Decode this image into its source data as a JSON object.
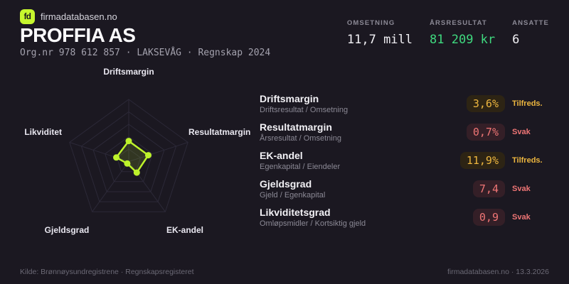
{
  "header": {
    "logo_text": "fd",
    "site": "firmadatabasen.no",
    "company": "PROFFIA AS",
    "meta": "Org.nr 978 612 857  ·  LAKSEVÅG  ·  Regnskap 2024",
    "stats": [
      {
        "label": "OMSETNING",
        "value": "11,7 mill",
        "color": "#f2f1f5"
      },
      {
        "label": "ÅRSRESULTAT",
        "value": "81 209 kr",
        "color": "#3fd97f"
      },
      {
        "label": "ANSATTE",
        "value": "6",
        "color": "#f2f1f5"
      }
    ]
  },
  "chart_data": {
    "type": "radar",
    "categories": [
      "Driftsmargin",
      "Resultatmargin",
      "EK-andel",
      "Gjeldsgrad",
      "Likviditet"
    ],
    "values": [
      0.33,
      0.33,
      0.22,
      0.04,
      0.21
    ],
    "max": 1,
    "rings": 5,
    "grid_color": "#2c2938",
    "stroke": "#bdf22b",
    "fill": "rgba(189,242,43,0.14)",
    "legend_position": "none",
    "title": ""
  },
  "metrics": [
    {
      "title": "Driftsmargin",
      "formula": "Driftsresultat / Omsetning",
      "value": "3,6%",
      "status": "Tilfreds.",
      "level": "ok"
    },
    {
      "title": "Resultatmargin",
      "formula": "Årsresultat / Omsetning",
      "value": "0,7%",
      "status": "Svak",
      "level": "weak"
    },
    {
      "title": "EK-andel",
      "formula": "Egenkapital / Eiendeler",
      "value": "11,9%",
      "status": "Tilfreds.",
      "level": "ok"
    },
    {
      "title": "Gjeldsgrad",
      "formula": "Gjeld / Egenkapital",
      "value": "7,4",
      "status": "Svak",
      "level": "weak"
    },
    {
      "title": "Likviditetsgrad",
      "formula": "Omløpsmidler / Kortsiktig gjeld",
      "value": "0,9",
      "status": "Svak",
      "level": "weak"
    }
  ],
  "footer": {
    "left": "Kilde: Brønnøysundregistrene · Regnskapsregisteret",
    "right": "firmadatabasen.no · 13.3.2026"
  },
  "colors": {
    "background": "#1b1821",
    "accent_lime": "#c6f62e",
    "positive_green": "#3fd97f",
    "warn_amber": "#edb63f",
    "bad_red": "#ef7575"
  }
}
